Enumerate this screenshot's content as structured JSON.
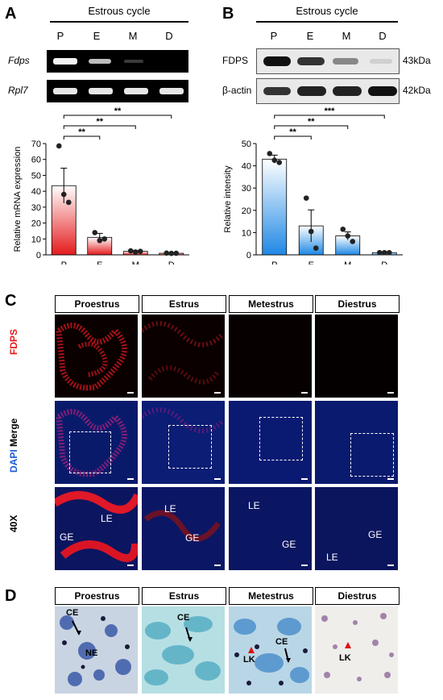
{
  "panel_a": {
    "label": "A",
    "header": "Estrous cycle",
    "lanes": [
      "P",
      "E",
      "M",
      "D"
    ],
    "genes": [
      "Fdps",
      "Rpl7"
    ],
    "significance": [
      "**",
      "**",
      "**"
    ]
  },
  "panel_b": {
    "label": "B",
    "header": "Estrous cycle",
    "lanes": [
      "P",
      "E",
      "M",
      "D"
    ],
    "proteins": [
      "FDPS",
      "β-actin"
    ],
    "sizes": [
      "43kDa",
      "42kDa"
    ],
    "significance": [
      "***",
      "**",
      "**"
    ]
  },
  "panel_c": {
    "label": "C",
    "stages": [
      "Proestrus",
      "Estrus",
      "Metestrus",
      "Diestrus"
    ],
    "row1_label": "FDPS",
    "row2_label_dapi": "DAPI",
    "row2_label_merge": "Merge",
    "row3_label": "40X",
    "annot": {
      "le": "LE",
      "ge": "GE"
    }
  },
  "panel_d": {
    "label": "D",
    "stages": [
      "Proestrus",
      "Estrus",
      "Metestrus",
      "Diestrus"
    ],
    "annot": {
      "ce": "CE",
      "ne": "NE",
      "lk": "LK"
    }
  },
  "chart_data": [
    {
      "type": "bar",
      "categories": [
        "P",
        "E",
        "M",
        "D"
      ],
      "values": [
        43.5,
        11,
        2.2,
        1
      ],
      "error": [
        11,
        2.5,
        0.5,
        0.3
      ],
      "points": [
        [
          68.5,
          38,
          33
        ],
        [
          14,
          9,
          10
        ],
        [
          2.5,
          1.8,
          2.2
        ],
        [
          1.1,
          0.9,
          1.0
        ]
      ],
      "ylabel": "Relative mRNA expression",
      "ylim": [
        0,
        70
      ],
      "yticks": [
        0,
        10,
        20,
        30,
        40,
        50,
        60,
        70
      ],
      "colors": [
        "#e41a1c",
        "#e41a1c",
        "#e41a1c",
        "#e41a1c"
      ]
    },
    {
      "type": "bar",
      "categories": [
        "P",
        "E",
        "M",
        "D"
      ],
      "values": [
        43,
        13,
        8.5,
        1
      ],
      "error": [
        1.8,
        7.2,
        1.8,
        0.1
      ],
      "points": [
        [
          45.5,
          42.5,
          41.5
        ],
        [
          25.5,
          10.5,
          3
        ],
        [
          11.5,
          8.5,
          6
        ],
        [
          1,
          1,
          1
        ]
      ],
      "ylabel": "Relative intensity",
      "ylim": [
        0,
        50
      ],
      "yticks": [
        0,
        10,
        20,
        30,
        40,
        50
      ],
      "colors": [
        "#1e88e5",
        "#1e88e5",
        "#1e88e5",
        "#1e88e5"
      ]
    }
  ]
}
